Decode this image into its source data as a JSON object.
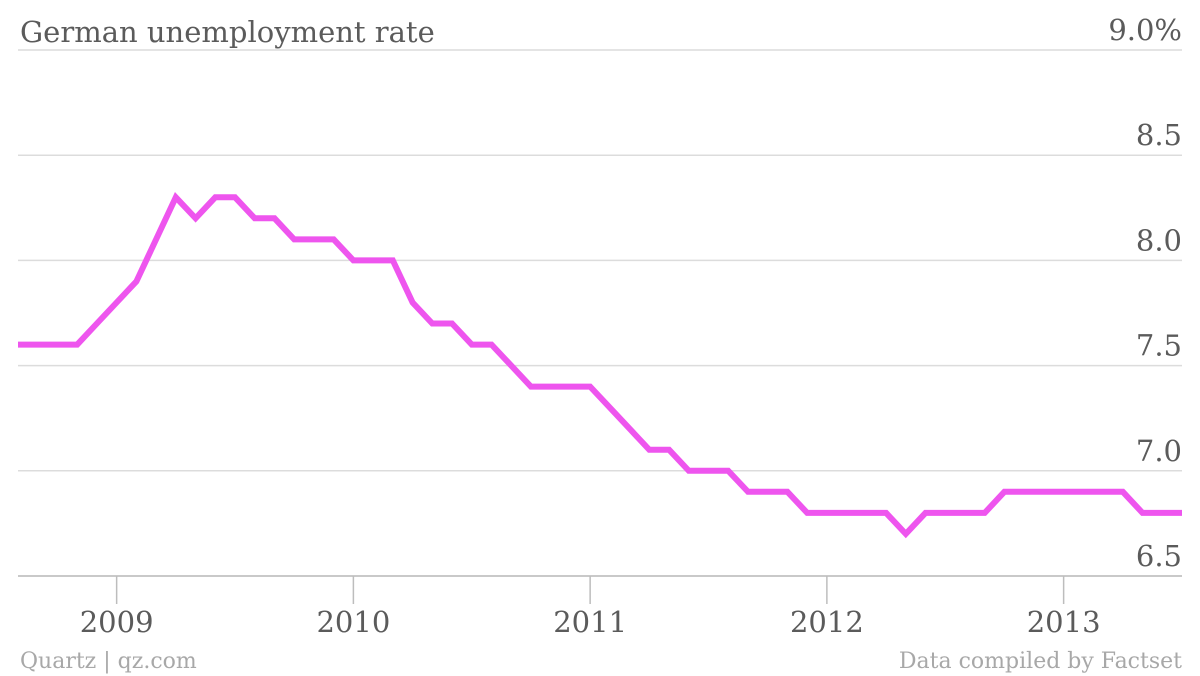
{
  "chart_data": {
    "type": "line",
    "title": "German unemployment rate",
    "source_left": "Quartz | qz.com",
    "source_right": "Data compiled by Factset",
    "xlabel": "",
    "ylabel": "",
    "ylim": [
      6.5,
      9.0
    ],
    "yticks": [
      {
        "value": 9.0,
        "label": "9.0%"
      },
      {
        "value": 8.5,
        "label": "8.5"
      },
      {
        "value": 8.0,
        "label": "8.0"
      },
      {
        "value": 7.5,
        "label": "7.5"
      },
      {
        "value": 7.0,
        "label": "7.0"
      },
      {
        "value": 6.5,
        "label": "6.5"
      }
    ],
    "xticks": [
      {
        "value": "2009-01",
        "label": "2009"
      },
      {
        "value": "2010-01",
        "label": "2010"
      },
      {
        "value": "2011-01",
        "label": "2011"
      },
      {
        "value": "2012-01",
        "label": "2012"
      },
      {
        "value": "2013-01",
        "label": "2013"
      }
    ],
    "xlim": [
      "2008-08",
      "2013-07"
    ],
    "grid": true,
    "colors": {
      "line": "#ee55ee"
    },
    "series": [
      {
        "x": [
          "2008-08",
          "2008-09",
          "2008-10",
          "2008-11",
          "2008-12",
          "2009-01",
          "2009-02",
          "2009-03",
          "2009-04",
          "2009-05",
          "2009-06",
          "2009-07",
          "2009-08",
          "2009-09",
          "2009-10",
          "2009-11",
          "2009-12",
          "2010-01",
          "2010-02",
          "2010-03",
          "2010-04",
          "2010-05",
          "2010-06",
          "2010-07",
          "2010-08",
          "2010-09",
          "2010-10",
          "2010-11",
          "2010-12",
          "2011-01",
          "2011-02",
          "2011-03",
          "2011-04",
          "2011-05",
          "2011-06",
          "2011-07",
          "2011-08",
          "2011-09",
          "2011-10",
          "2011-11",
          "2011-12",
          "2012-01",
          "2012-02",
          "2012-03",
          "2012-04",
          "2012-05",
          "2012-06",
          "2012-07",
          "2012-08",
          "2012-09",
          "2012-10",
          "2012-11",
          "2012-12",
          "2013-01",
          "2013-02",
          "2013-03",
          "2013-04",
          "2013-05",
          "2013-06",
          "2013-07"
        ],
        "values": [
          7.6,
          7.6,
          7.6,
          7.6,
          7.7,
          7.8,
          7.9,
          8.1,
          8.3,
          8.2,
          8.3,
          8.3,
          8.2,
          8.2,
          8.1,
          8.1,
          8.1,
          8.0,
          8.0,
          8.0,
          7.8,
          7.7,
          7.7,
          7.6,
          7.6,
          7.5,
          7.4,
          7.4,
          7.4,
          7.4,
          7.3,
          7.2,
          7.1,
          7.1,
          7.0,
          7.0,
          7.0,
          6.9,
          6.9,
          6.9,
          6.8,
          6.8,
          6.8,
          6.8,
          6.8,
          6.7,
          6.8,
          6.8,
          6.8,
          6.8,
          6.9,
          6.9,
          6.9,
          6.9,
          6.9,
          6.9,
          6.9,
          6.8,
          6.8,
          6.8
        ]
      }
    ]
  }
}
